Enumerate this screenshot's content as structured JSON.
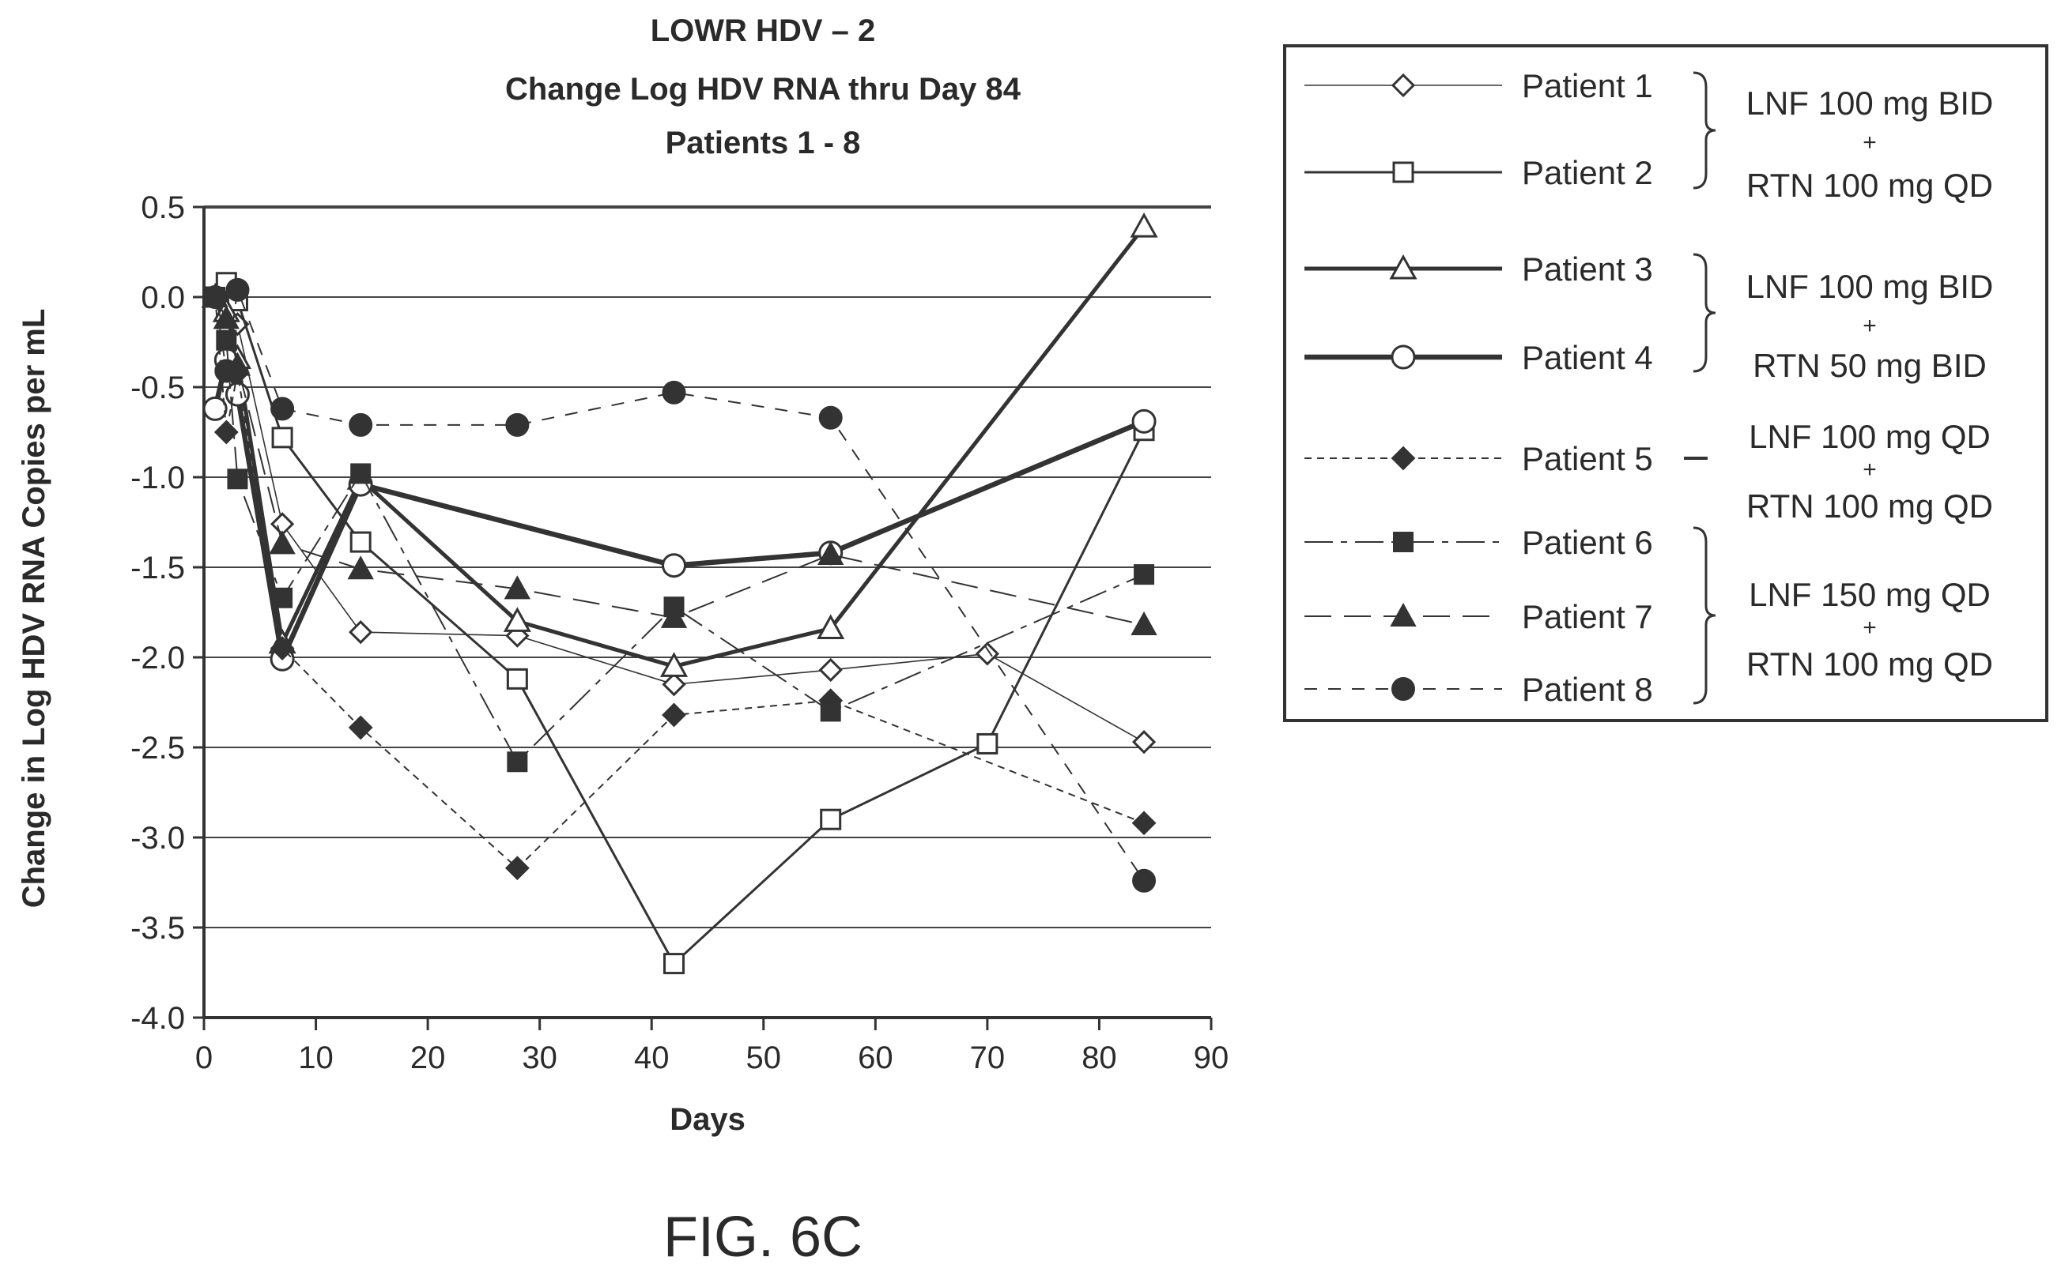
{
  "chart_data": {
    "type": "line",
    "title": [
      "LOWR HDV – 2",
      "Change Log HDV RNA thru Day 84",
      "Patients 1 - 8"
    ],
    "xlabel": "Days",
    "ylabel": "Change in Log HDV RNA Copies per mL",
    "xlim": [
      0,
      90
    ],
    "ylim": [
      -4.0,
      0.5
    ],
    "x_ticks": [
      0,
      10,
      20,
      30,
      40,
      50,
      60,
      70,
      80,
      90
    ],
    "y_ticks": [
      0.5,
      0.0,
      -0.5,
      -1.0,
      -1.5,
      -2.0,
      -2.5,
      -3.0,
      -3.5,
      -4.0
    ],
    "x_tick_labels": [
      "0",
      "10",
      "20",
      "30",
      "40",
      "50",
      "60",
      "70",
      "80",
      "90"
    ],
    "y_tick_labels": [
      "0.5",
      "0.0",
      "-0.5",
      "-1.0",
      "-1.5",
      "-2.0",
      "-2.5",
      "-3.0",
      "-3.5",
      "-4.0"
    ],
    "grid": "horizontal",
    "legend_placement": "right",
    "series": [
      {
        "name": "Patient 1",
        "marker": "diamond-open",
        "line": "thin-solid",
        "points": [
          [
            1,
            0.0
          ],
          [
            2,
            -0.05
          ],
          [
            3,
            -0.15
          ],
          [
            7,
            -1.26
          ],
          [
            14,
            -1.86
          ],
          [
            28,
            -1.88
          ],
          [
            42,
            -2.15
          ],
          [
            56,
            -2.07
          ],
          [
            70,
            -1.98
          ],
          [
            84,
            -2.47
          ]
        ]
      },
      {
        "name": "Patient 2",
        "marker": "square-open",
        "line": "solid",
        "points": [
          [
            1,
            0.0
          ],
          [
            2,
            0.08
          ],
          [
            3,
            -0.02
          ],
          [
            7,
            -0.78
          ],
          [
            14,
            -1.36
          ],
          [
            28,
            -2.12
          ],
          [
            42,
            -3.7
          ],
          [
            56,
            -2.9
          ],
          [
            70,
            -2.48
          ],
          [
            84,
            -0.74
          ]
        ]
      },
      {
        "name": "Patient 3",
        "marker": "triangle-open",
        "line": "thick-solid",
        "points": [
          [
            1,
            0.0
          ],
          [
            2,
            -0.08
          ],
          [
            3,
            -0.34
          ],
          [
            7,
            -1.92
          ],
          [
            14,
            -1.01
          ],
          [
            28,
            -1.8
          ],
          [
            42,
            -2.05
          ],
          [
            56,
            -1.84
          ],
          [
            84,
            0.39
          ]
        ]
      },
      {
        "name": "Patient 4",
        "marker": "circle-open",
        "line": "thicker-solid",
        "points": [
          [
            1,
            -0.62
          ],
          [
            2,
            -0.35
          ],
          [
            3,
            -0.54
          ],
          [
            7,
            -2.01
          ],
          [
            14,
            -1.04
          ],
          [
            42,
            -1.49
          ],
          [
            56,
            -1.42
          ],
          [
            84,
            -0.69
          ]
        ]
      },
      {
        "name": "Patient 5",
        "marker": "diamond-filled",
        "line": "fine-dash",
        "points": [
          [
            1,
            0.0
          ],
          [
            2,
            -0.75
          ],
          [
            3,
            -0.42
          ],
          [
            7,
            -1.95
          ],
          [
            14,
            -2.39
          ],
          [
            28,
            -3.17
          ],
          [
            42,
            -2.32
          ],
          [
            56,
            -2.24
          ],
          [
            84,
            -2.92
          ]
        ]
      },
      {
        "name": "Patient 6",
        "marker": "square-filled",
        "line": "dash-dot",
        "points": [
          [
            1,
            0.0
          ],
          [
            2,
            -0.24
          ],
          [
            3,
            -1.01
          ],
          [
            7,
            -1.67
          ],
          [
            14,
            -0.98
          ],
          [
            28,
            -2.58
          ],
          [
            42,
            -1.72
          ],
          [
            56,
            -2.3
          ],
          [
            84,
            -1.54
          ]
        ]
      },
      {
        "name": "Patient 7",
        "marker": "triangle-filled",
        "line": "long-dash",
        "points": [
          [
            1,
            0.0
          ],
          [
            2,
            -0.12
          ],
          [
            3,
            -0.38
          ],
          [
            7,
            -1.37
          ],
          [
            14,
            -1.51
          ],
          [
            28,
            -1.62
          ],
          [
            42,
            -1.78
          ],
          [
            56,
            -1.43
          ],
          [
            84,
            -1.82
          ]
        ]
      },
      {
        "name": "Patient 8",
        "marker": "circle-filled",
        "line": "medium-dash",
        "points": [
          [
            1,
            0.0
          ],
          [
            2,
            -0.41
          ],
          [
            3,
            0.04
          ],
          [
            7,
            -0.62
          ],
          [
            14,
            -0.71
          ],
          [
            28,
            -0.71
          ],
          [
            42,
            -0.53
          ],
          [
            56,
            -0.67
          ],
          [
            84,
            -3.24
          ]
        ]
      }
    ]
  },
  "legend": {
    "items": [
      "Patient 1",
      "Patient 2",
      "Patient 3",
      "Patient 4",
      "Patient 5",
      "Patient 6",
      "Patient 7",
      "Patient 8"
    ],
    "groups": [
      {
        "line1": "LNF 100 mg BID",
        "plus": "+",
        "line2": "RTN 100 mg QD"
      },
      {
        "line1": "LNF 100 mg BID",
        "plus": "+",
        "line2": "RTN 50 mg BID"
      },
      {
        "line1": "LNF 100 mg QD",
        "plus": "+",
        "line2": "RTN 100 mg QD"
      },
      {
        "line1": "LNF 150 mg QD",
        "plus": "+",
        "line2": "RTN 100 mg QD"
      }
    ]
  },
  "figure_label": "FIG. 6C"
}
